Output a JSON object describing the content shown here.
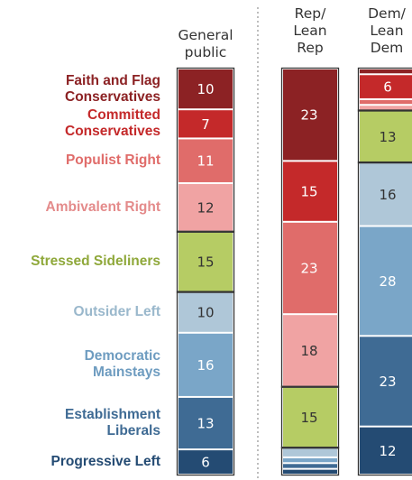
{
  "chart_data": {
    "type": "bar",
    "stacked": true,
    "orientation": "vertical",
    "categories": [
      "General public",
      "Rep/ Lean Rep",
      "Dem/ Lean Dem"
    ],
    "column_labels": [
      "General\npublic",
      "Rep/\nLean\nRep",
      "Dem/\nLean\nDem"
    ],
    "series": [
      {
        "name": "Faith and Flag Conservatives",
        "label": "Faith and Flag\nConservatives",
        "color": "#8c2224",
        "label_color": "#8c2224",
        "values": [
          10,
          23,
          1
        ]
      },
      {
        "name": "Committed Conservatives",
        "label": "Committed\nConservatives",
        "color": "#c4292a",
        "label_color": "#c4292a",
        "values": [
          7,
          15,
          6
        ]
      },
      {
        "name": "Populist Right",
        "label": "Populist Right",
        "color": "#e06c6a",
        "label_color": "#e06c6a",
        "values": [
          11,
          23,
          1
        ]
      },
      {
        "name": "Ambivalent Right",
        "label": "Ambivalent Right",
        "color": "#f0a3a3",
        "label_color": "#e48b8b",
        "values": [
          12,
          18,
          1
        ]
      },
      {
        "name": "Stressed Sideliners",
        "label": "Stressed Sideliners",
        "color": "#b6cc64",
        "label_color": "#8fa83a",
        "values": [
          15,
          15,
          13
        ]
      },
      {
        "name": "Outsider Left",
        "label": "Outsider Left",
        "color": "#afc7d8",
        "label_color": "#9ab8cc",
        "values": [
          10,
          2,
          16
        ]
      },
      {
        "name": "Democratic Mainstays",
        "label": "Democratic\nMainstays",
        "color": "#7aa6c8",
        "label_color": "#6e9cc0",
        "values": [
          16,
          1,
          28
        ]
      },
      {
        "name": "Establishment Liberals",
        "label": "Establishment\nLiberals",
        "color": "#3f6b94",
        "label_color": "#3f6b94",
        "values": [
          13,
          1,
          23
        ]
      },
      {
        "name": "Progressive Left",
        "label": "Progressive Left",
        "color": "#244b73",
        "label_color": "#244b73",
        "values": [
          6,
          1,
          12
        ]
      }
    ],
    "shown_labels": [
      [
        "10",
        "7",
        "11",
        "12",
        "15",
        "10",
        "16",
        "13",
        "6"
      ],
      [
        "23",
        "15",
        "23",
        "18",
        "15",
        "",
        "",
        "",
        ""
      ],
      [
        "",
        "6",
        "",
        "",
        "13",
        "16",
        "28",
        "23",
        "12"
      ]
    ],
    "group_boxes": [
      [
        [
          0,
          3
        ],
        [
          4,
          4
        ],
        [
          5,
          8
        ]
      ],
      [
        [
          0,
          3
        ],
        [
          4,
          4
        ],
        [
          5,
          8
        ]
      ],
      [
        [
          0,
          3
        ],
        [
          4,
          4
        ],
        [
          5,
          8
        ]
      ]
    ],
    "title": "",
    "xlabel": "",
    "ylabel": ""
  }
}
